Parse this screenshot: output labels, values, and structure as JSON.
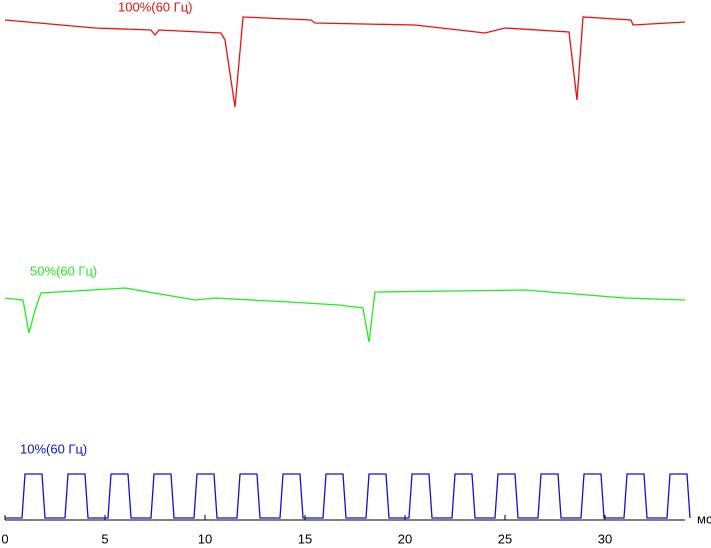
{
  "chart_data": {
    "type": "line",
    "xlabel": "мс",
    "xlim": [
      0,
      34.5
    ],
    "xticks": [
      0,
      5,
      10,
      15,
      20,
      25,
      30
    ],
    "ylim": [
      0,
      520
    ],
    "series": [
      {
        "name": "100%(60 Гц)",
        "color": "#ee1111",
        "x": [
          0,
          4.5,
          7.3,
          7.5,
          7.7,
          10.8,
          11.0,
          11.5,
          11.8,
          11.9,
          15.3,
          15.5,
          20.5,
          24,
          25,
          28.2,
          28.6,
          28.9,
          31.3,
          31.4,
          34
        ],
        "values": [
          500,
          492,
          490,
          485,
          490,
          487,
          480,
          413,
          480,
          503,
          500,
          497,
          495,
          487,
          492,
          488,
          420,
          503,
          500,
          495,
          498
        ]
      },
      {
        "name": "50%(60 Гц)",
        "color": "#22ee22",
        "x": [
          0,
          0.9,
          1.2,
          1.5,
          1.8,
          6,
          9.5,
          10.5,
          14.2,
          16.7,
          17.9,
          18.2,
          18.5,
          26,
          31,
          34
        ],
        "values": [
          222,
          220,
          187,
          210,
          227,
          232,
          220,
          222,
          218,
          215,
          212,
          178,
          228,
          230,
          222,
          220
        ]
      },
      {
        "name": "10%(60 Гц)",
        "color": "#1111dd",
        "x": [
          0,
          0.85,
          1.0,
          1.85,
          2.0,
          3.0,
          3.15,
          4.0,
          4.15,
          5.15,
          5.3,
          6.15,
          6.3,
          7.3,
          7.45,
          8.3,
          8.45,
          9.45,
          9.6,
          10.45,
          10.6,
          11.6,
          11.75,
          12.6,
          12.75,
          13.75,
          13.9,
          14.75,
          14.9,
          15.9,
          16.05,
          16.9,
          17.05,
          18.05,
          18.2,
          19.05,
          19.2,
          20.2,
          20.35,
          21.2,
          21.35,
          22.35,
          22.5,
          23.35,
          23.5,
          24.5,
          24.65,
          25.5,
          25.65,
          26.65,
          26.8,
          27.65,
          27.8,
          28.8,
          28.95,
          29.8,
          29.95,
          30.95,
          31.1,
          31.95,
          32.1,
          33.1,
          33.25,
          34.1,
          34.25
        ],
        "values": [
          2,
          2,
          46,
          46,
          2,
          2,
          46,
          46,
          2,
          2,
          46,
          46,
          2,
          2,
          46,
          46,
          2,
          2,
          46,
          46,
          2,
          2,
          46,
          46,
          2,
          2,
          46,
          46,
          2,
          2,
          46,
          46,
          2,
          2,
          46,
          46,
          2,
          2,
          46,
          46,
          2,
          2,
          46,
          46,
          2,
          2,
          46,
          46,
          2,
          2,
          46,
          46,
          2,
          2,
          46,
          46,
          2,
          2,
          46,
          46,
          2,
          2,
          46,
          46,
          2
        ]
      }
    ]
  }
}
